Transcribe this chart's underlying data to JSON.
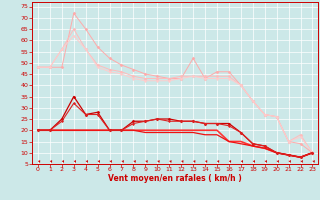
{
  "background_color": "#cce8e8",
  "grid_color": "#ffffff",
  "xlabel": "Vent moyen/en rafales ( km/h )",
  "xlabel_color": "#cc0000",
  "xlabel_fontsize": 5.5,
  "tick_color": "#cc0000",
  "tick_fontsize": 4.5,
  "xlim": [
    -0.5,
    23.5
  ],
  "ylim": [
    5,
    77
  ],
  "yticks": [
    5,
    10,
    15,
    20,
    25,
    30,
    35,
    40,
    45,
    50,
    55,
    60,
    65,
    70,
    75
  ],
  "xticks": [
    0,
    1,
    2,
    3,
    4,
    5,
    6,
    7,
    8,
    9,
    10,
    11,
    12,
    13,
    14,
    15,
    16,
    17,
    18,
    19,
    20,
    21,
    22,
    23
  ],
  "lines": [
    {
      "x": [
        0,
        1,
        2,
        3,
        4,
        5,
        6,
        7,
        8,
        9,
        10,
        11,
        12,
        13,
        14,
        15,
        16,
        17,
        18,
        19,
        20,
        21,
        22,
        23
      ],
      "y": [
        48,
        48,
        48,
        72,
        65,
        57,
        52,
        49,
        47,
        45,
        44,
        43,
        43,
        52,
        43,
        46,
        46,
        40,
        33,
        27,
        26,
        15,
        14,
        10
      ],
      "color": "#ffaaaa",
      "lw": 0.7,
      "marker": "D",
      "ms": 1.5
    },
    {
      "x": [
        0,
        1,
        2,
        3,
        4,
        5,
        6,
        7,
        8,
        9,
        10,
        11,
        12,
        13,
        14,
        15,
        16,
        17,
        18,
        19,
        20,
        21,
        22,
        23
      ],
      "y": [
        48,
        48,
        56,
        65,
        56,
        49,
        47,
        46,
        44,
        43,
        43,
        43,
        44,
        44,
        44,
        44,
        44,
        40,
        33,
        27,
        26,
        15,
        18,
        10
      ],
      "color": "#ffbbbb",
      "lw": 0.7,
      "marker": "D",
      "ms": 1.5
    },
    {
      "x": [
        0,
        1,
        2,
        3,
        4,
        5,
        6,
        7,
        8,
        9,
        10,
        11,
        12,
        13,
        14,
        15,
        16,
        17,
        18,
        19,
        20,
        21,
        22,
        23
      ],
      "y": [
        48,
        48,
        56,
        62,
        56,
        48,
        46,
        45,
        43,
        42,
        42,
        42,
        43,
        44,
        43,
        43,
        43,
        40,
        33,
        27,
        26,
        15,
        17,
        10
      ],
      "color": "#ffcccc",
      "lw": 0.7,
      "marker": "D",
      "ms": 1.2
    },
    {
      "x": [
        0,
        1,
        2,
        3,
        4,
        5,
        6,
        7,
        8,
        9,
        10,
        11,
        12,
        13,
        14,
        15,
        16,
        17,
        18,
        19,
        20,
        21,
        22,
        23
      ],
      "y": [
        20,
        20,
        25,
        35,
        27,
        28,
        20,
        20,
        24,
        24,
        25,
        25,
        24,
        24,
        23,
        23,
        23,
        19,
        14,
        13,
        10,
        9,
        8,
        10
      ],
      "color": "#cc0000",
      "lw": 0.9,
      "marker": "D",
      "ms": 1.5
    },
    {
      "x": [
        0,
        1,
        2,
        3,
        4,
        5,
        6,
        7,
        8,
        9,
        10,
        11,
        12,
        13,
        14,
        15,
        16,
        17,
        18,
        19,
        20,
        21,
        22,
        23
      ],
      "y": [
        20,
        20,
        24,
        32,
        27,
        27,
        20,
        20,
        23,
        24,
        25,
        24,
        24,
        24,
        23,
        23,
        22,
        19,
        14,
        13,
        10,
        9,
        8,
        10
      ],
      "color": "#dd2222",
      "lw": 0.8,
      "marker": "D",
      "ms": 1.2
    },
    {
      "x": [
        0,
        1,
        2,
        3,
        4,
        5,
        6,
        7,
        8,
        9,
        10,
        11,
        12,
        13,
        14,
        15,
        16,
        17,
        18,
        19,
        20,
        21,
        22,
        23
      ],
      "y": [
        20,
        20,
        20,
        20,
        20,
        20,
        20,
        20,
        20,
        20,
        20,
        20,
        20,
        20,
        20,
        20,
        15,
        15,
        13,
        12,
        10,
        9,
        8,
        10
      ],
      "color": "#ff3333",
      "lw": 1.2,
      "marker": null,
      "ms": 0
    },
    {
      "x": [
        0,
        1,
        2,
        3,
        4,
        5,
        6,
        7,
        8,
        9,
        10,
        11,
        12,
        13,
        14,
        15,
        16,
        17,
        18,
        19,
        20,
        21,
        22,
        23
      ],
      "y": [
        20,
        20,
        20,
        20,
        20,
        20,
        20,
        20,
        20,
        19,
        19,
        19,
        19,
        19,
        18,
        18,
        15,
        14,
        13,
        12,
        10,
        9,
        8,
        10
      ],
      "color": "#ee1111",
      "lw": 0.9,
      "marker": null,
      "ms": 0
    }
  ],
  "arrow_color": "#cc0000",
  "spine_color": "#cc0000"
}
